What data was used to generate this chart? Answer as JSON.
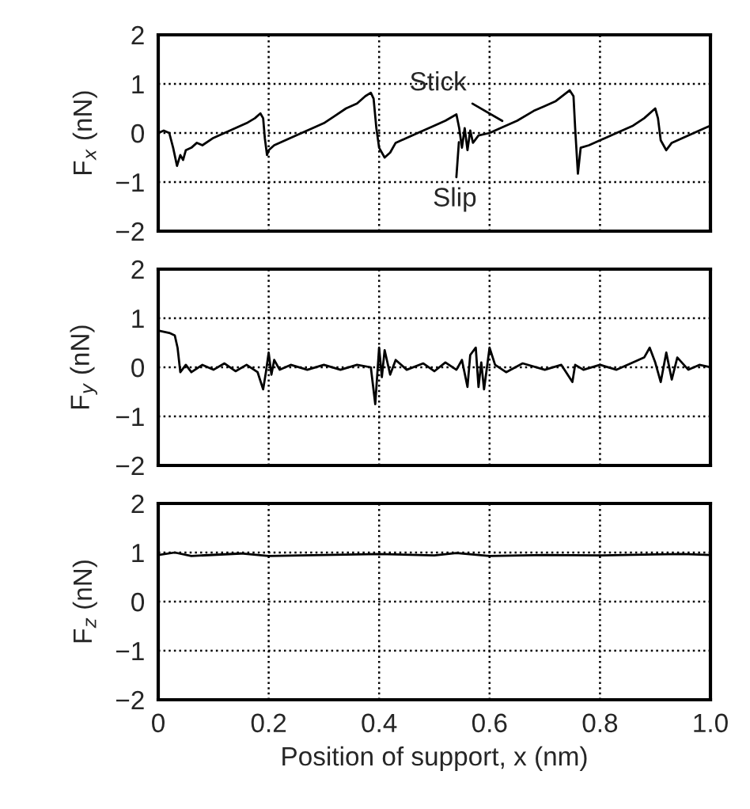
{
  "chart_data": [
    {
      "type": "line",
      "ylabel": "F$_{x}$ (nN)",
      "xlim": [
        0,
        1.0
      ],
      "ylim": [
        -2,
        2
      ],
      "xticks": [
        0,
        0.2,
        0.4,
        0.6,
        0.8
      ],
      "yticks": [
        -2,
        -1,
        0,
        1,
        2
      ],
      "grid": true,
      "tick_labels": "y",
      "line_style": "solid",
      "annotations": [
        {
          "text": "Stick",
          "x": 0.63,
          "y": 0.2
        },
        {
          "text": "Slip",
          "x": 0.545,
          "y": -0.1
        }
      ],
      "series": [
        {
          "color": "#000000",
          "x": [
            0,
            0.01,
            0.02,
            0.027,
            0.034,
            0.04,
            0.045,
            0.05,
            0.06,
            0.07,
            0.08,
            0.1,
            0.12,
            0.14,
            0.16,
            0.175,
            0.185,
            0.19,
            0.193,
            0.197,
            0.2,
            0.21,
            0.23,
            0.25,
            0.28,
            0.3,
            0.32,
            0.34,
            0.36,
            0.375,
            0.385,
            0.39,
            0.395,
            0.4,
            0.41,
            0.42,
            0.43,
            0.45,
            0.47,
            0.5,
            0.52,
            0.54,
            0.545,
            0.55,
            0.555,
            0.56,
            0.565,
            0.57,
            0.58,
            0.6,
            0.62,
            0.65,
            0.68,
            0.7,
            0.72,
            0.745,
            0.752,
            0.755,
            0.76,
            0.765,
            0.78,
            0.8,
            0.83,
            0.86,
            0.88,
            0.9,
            0.905,
            0.91,
            0.92,
            0.93,
            0.95,
            0.97,
            0.99,
            1.0
          ],
          "values": [
            0.0,
            0.05,
            0.0,
            -0.3,
            -0.67,
            -0.45,
            -0.55,
            -0.35,
            -0.3,
            -0.2,
            -0.25,
            -0.1,
            0.0,
            0.1,
            0.2,
            0.3,
            0.4,
            0.3,
            -0.1,
            -0.45,
            -0.35,
            -0.25,
            -0.15,
            -0.05,
            0.1,
            0.2,
            0.35,
            0.5,
            0.6,
            0.75,
            0.82,
            0.7,
            0.1,
            -0.3,
            -0.5,
            -0.4,
            -0.2,
            -0.1,
            0.0,
            0.15,
            0.25,
            0.38,
            0.1,
            -0.3,
            0.1,
            -0.35,
            0.05,
            -0.2,
            -0.05,
            0.0,
            0.1,
            0.25,
            0.45,
            0.55,
            0.65,
            0.87,
            0.75,
            0.1,
            -0.83,
            -0.3,
            -0.25,
            -0.15,
            0.0,
            0.15,
            0.3,
            0.5,
            0.3,
            -0.15,
            -0.35,
            -0.2,
            -0.1,
            0.0,
            0.1,
            0.15
          ]
        }
      ]
    },
    {
      "type": "line",
      "ylabel": "F$_{y}$ (nN)",
      "xlim": [
        0,
        1.0
      ],
      "ylim": [
        -2,
        2
      ],
      "xticks": [
        0,
        0.2,
        0.4,
        0.6,
        0.8
      ],
      "yticks": [
        -2,
        -1,
        0,
        1,
        2
      ],
      "grid": true,
      "tick_labels": "y",
      "line_style": "solid",
      "series": [
        {
          "color": "#000000",
          "x": [
            0,
            0.02,
            0.03,
            0.035,
            0.04,
            0.05,
            0.06,
            0.08,
            0.1,
            0.12,
            0.14,
            0.16,
            0.18,
            0.19,
            0.195,
            0.2,
            0.205,
            0.21,
            0.22,
            0.24,
            0.27,
            0.3,
            0.33,
            0.36,
            0.385,
            0.393,
            0.4,
            0.405,
            0.41,
            0.42,
            0.43,
            0.45,
            0.48,
            0.5,
            0.52,
            0.54,
            0.55,
            0.56,
            0.565,
            0.575,
            0.58,
            0.585,
            0.59,
            0.6,
            0.61,
            0.63,
            0.66,
            0.7,
            0.73,
            0.75,
            0.755,
            0.77,
            0.8,
            0.83,
            0.86,
            0.88,
            0.89,
            0.9,
            0.91,
            0.92,
            0.93,
            0.94,
            0.96,
            0.98,
            1.0
          ],
          "values": [
            0.75,
            0.7,
            0.65,
            0.4,
            -0.1,
            0.05,
            -0.1,
            0.05,
            -0.05,
            0.08,
            -0.08,
            0.05,
            -0.1,
            -0.45,
            -0.1,
            0.3,
            -0.15,
            0.15,
            -0.05,
            0.05,
            -0.05,
            0.05,
            -0.05,
            0.05,
            0.0,
            -0.75,
            0.4,
            -0.2,
            0.35,
            -0.15,
            0.15,
            -0.05,
            0.08,
            -0.08,
            0.1,
            -0.05,
            0.15,
            -0.4,
            0.25,
            0.4,
            -0.4,
            0.1,
            -0.45,
            0.4,
            0.05,
            -0.1,
            0.08,
            -0.05,
            0.05,
            -0.3,
            0.05,
            -0.05,
            0.05,
            -0.05,
            0.1,
            0.2,
            0.4,
            0.1,
            -0.3,
            0.3,
            -0.25,
            0.2,
            -0.05,
            0.05,
            0.0
          ]
        }
      ]
    },
    {
      "type": "line",
      "ylabel": "F$_{z}$ (nN)",
      "xlabel": "Position of support, x (nm)",
      "xlim": [
        0,
        1.0
      ],
      "ylim": [
        -2,
        2
      ],
      "xticks": [
        0,
        0.2,
        0.4,
        0.6,
        0.8,
        {
          "value": 1.0,
          "label": "1.0"
        }
      ],
      "yticks": [
        -2,
        -1,
        0,
        1,
        2
      ],
      "grid": true,
      "line_style": "solid",
      "series": [
        {
          "color": "#000000",
          "x": [
            0,
            0.03,
            0.06,
            0.15,
            0.2,
            0.3,
            0.4,
            0.5,
            0.54,
            0.6,
            0.7,
            0.8,
            0.9,
            0.95,
            1.0
          ],
          "values": [
            0.95,
            1.0,
            0.93,
            0.98,
            0.93,
            0.95,
            0.97,
            0.94,
            0.99,
            0.93,
            0.95,
            0.94,
            0.96,
            0.97,
            0.95
          ]
        }
      ]
    }
  ]
}
